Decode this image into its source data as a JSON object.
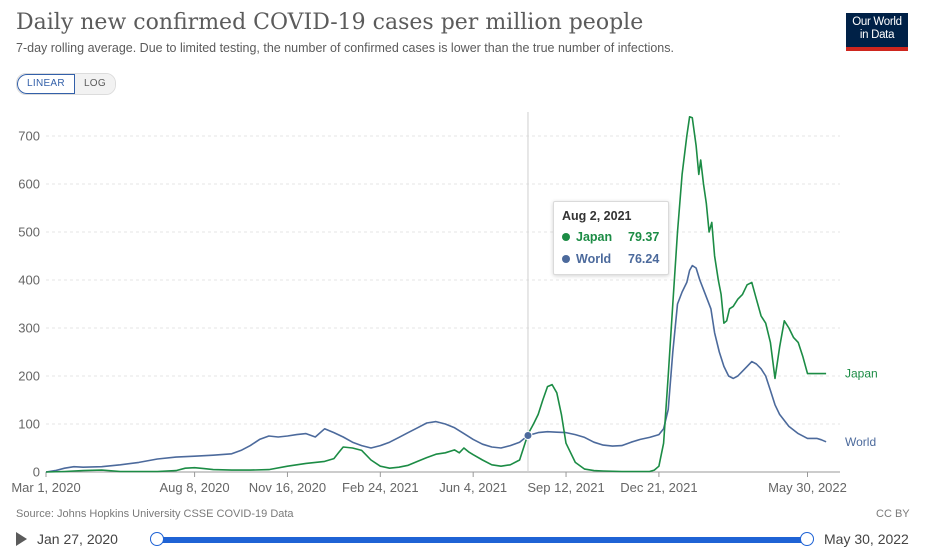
{
  "header": {
    "title": "Daily new confirmed COVID-19 cases per million people",
    "subtitle": "7-day rolling average. Due to limited testing, the number of confirmed cases is lower than the true number of infections.",
    "logo_line1": "Our World",
    "logo_line2": "in Data"
  },
  "scale_toggle": {
    "linear": "LINEAR",
    "log": "LOG"
  },
  "tooltip": {
    "date": "Aug 2, 2021",
    "rows": [
      {
        "name": "Japan",
        "value": "79.37",
        "color": "#1c8c45"
      },
      {
        "name": "World",
        "value": "76.24",
        "color": "#4c6a9c"
      }
    ]
  },
  "footer": {
    "source": "Source: Johns Hopkins University CSSE COVID-19 Data",
    "license": "CC BY",
    "timeline_start": "Jan 27, 2020",
    "timeline_end": "May 30, 2022"
  },
  "chart_data": {
    "type": "line",
    "title": "Daily new confirmed COVID-19 cases per million people",
    "xlabel": "",
    "ylabel": "",
    "x_range_days": [
      0,
      855
    ],
    "ylim": [
      0,
      750
    ],
    "y_ticks": [
      0,
      100,
      200,
      300,
      400,
      500,
      600,
      700
    ],
    "x_ticks": [
      {
        "label": "Mar 1, 2020",
        "day": 0
      },
      {
        "label": "Aug 8, 2020",
        "day": 160
      },
      {
        "label": "Nov 16, 2020",
        "day": 260
      },
      {
        "label": "Feb 24, 2021",
        "day": 360
      },
      {
        "label": "Jun 4, 2021",
        "day": 460
      },
      {
        "label": "Sep 12, 2021",
        "day": 560
      },
      {
        "label": "Dec 21, 2021",
        "day": 660
      },
      {
        "label": "May 30, 2022",
        "day": 820
      }
    ],
    "hover_day": 519,
    "series": [
      {
        "name": "Japan",
        "color": "#1c8c45",
        "days": [
          0,
          20,
          40,
          60,
          80,
          100,
          120,
          140,
          150,
          160,
          170,
          180,
          200,
          220,
          240,
          260,
          270,
          280,
          290,
          300,
          310,
          315,
          320,
          330,
          340,
          350,
          360,
          370,
          380,
          390,
          400,
          410,
          420,
          430,
          440,
          445,
          450,
          455,
          460,
          470,
          480,
          490,
          500,
          510,
          519,
          525,
          530,
          535,
          540,
          545,
          550,
          555,
          560,
          570,
          580,
          590,
          600,
          620,
          640,
          650,
          655,
          660,
          665,
          670,
          675,
          680,
          685,
          690,
          693,
          696,
          700,
          703,
          705,
          708,
          711,
          714,
          717,
          720,
          724,
          727,
          730,
          733,
          736,
          740,
          745,
          750,
          755,
          760,
          765,
          770,
          775,
          780,
          785,
          790,
          795,
          800,
          805,
          810,
          815,
          820,
          825,
          830,
          835,
          840
        ],
        "values": [
          0,
          1,
          3,
          4,
          1,
          1,
          1,
          3,
          8,
          9,
          7,
          5,
          4,
          4,
          5,
          12,
          15,
          18,
          20,
          22,
          28,
          40,
          52,
          50,
          45,
          25,
          12,
          8,
          10,
          14,
          22,
          30,
          37,
          40,
          46,
          40,
          50,
          42,
          36,
          25,
          15,
          12,
          15,
          25,
          79,
          100,
          120,
          150,
          178,
          182,
          165,
          120,
          60,
          20,
          6,
          3,
          2,
          1,
          1,
          1,
          4,
          12,
          60,
          200,
          350,
          500,
          620,
          700,
          740,
          738,
          680,
          620,
          650,
          600,
          560,
          500,
          520,
          450,
          400,
          370,
          310,
          315,
          340,
          345,
          360,
          370,
          390,
          395,
          360,
          325,
          310,
          270,
          195,
          260,
          315,
          300,
          280,
          270,
          240,
          205,
          205,
          205,
          205,
          205
        ]
      },
      {
        "name": "World",
        "color": "#4c6a9c",
        "days": [
          0,
          10,
          20,
          30,
          40,
          60,
          80,
          100,
          120,
          140,
          160,
          180,
          200,
          210,
          220,
          230,
          240,
          250,
          260,
          270,
          280,
          290,
          300,
          310,
          320,
          330,
          340,
          350,
          360,
          370,
          380,
          390,
          400,
          410,
          420,
          430,
          440,
          450,
          460,
          470,
          480,
          490,
          500,
          510,
          519,
          530,
          540,
          550,
          560,
          570,
          580,
          590,
          600,
          610,
          620,
          630,
          640,
          650,
          660,
          665,
          670,
          675,
          680,
          685,
          690,
          693,
          696,
          700,
          704,
          708,
          712,
          716,
          720,
          725,
          730,
          735,
          740,
          745,
          750,
          755,
          760,
          765,
          770,
          775,
          780,
          785,
          790,
          800,
          810,
          820,
          830,
          835,
          840
        ],
        "values": [
          0,
          3,
          8,
          11,
          10,
          11,
          15,
          20,
          27,
          31,
          33,
          35,
          38,
          45,
          55,
          68,
          75,
          73,
          75,
          78,
          80,
          73,
          90,
          82,
          73,
          62,
          55,
          50,
          55,
          62,
          72,
          82,
          92,
          102,
          105,
          100,
          92,
          80,
          68,
          58,
          52,
          50,
          55,
          62,
          76,
          82,
          84,
          83,
          82,
          78,
          72,
          62,
          56,
          54,
          55,
          62,
          68,
          72,
          78,
          90,
          130,
          250,
          350,
          375,
          395,
          420,
          430,
          425,
          400,
          380,
          360,
          340,
          290,
          250,
          220,
          200,
          195,
          200,
          210,
          220,
          230,
          225,
          215,
          200,
          170,
          140,
          120,
          95,
          80,
          70,
          70,
          67,
          63
        ]
      }
    ]
  }
}
